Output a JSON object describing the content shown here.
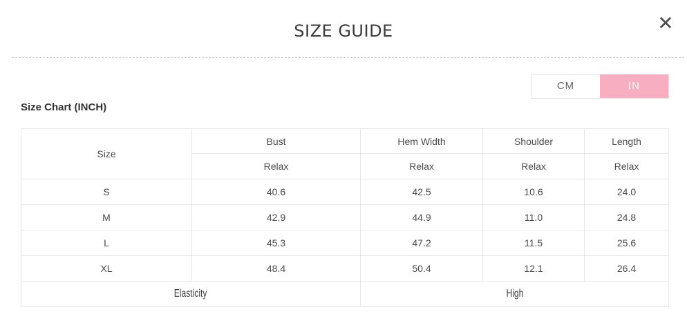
{
  "modal": {
    "title": "SIZE GUIDE",
    "close_icon": "✕"
  },
  "colors": {
    "accent_pink": "#f7aec1",
    "table_border": "#e8e8e8",
    "text_dark": "#3b3b3b"
  },
  "unit_toggle": {
    "options": [
      {
        "label": "CM",
        "selected": false
      },
      {
        "label": "IN",
        "selected": true
      }
    ]
  },
  "section": {
    "heading": "Size Chart (INCH)"
  },
  "table": {
    "columns": [
      "Size",
      "Bust",
      "Hem Width",
      "Shoulder",
      "Length"
    ],
    "fit_row": [
      "Relax",
      "Relax",
      "Relax",
      "Relax"
    ],
    "rows": [
      {
        "size": "S",
        "values": [
          "40.6",
          "42.5",
          "10.6",
          "24.0"
        ]
      },
      {
        "size": "M",
        "values": [
          "42.9",
          "44.9",
          "11.0",
          "24.8"
        ]
      },
      {
        "size": "L",
        "values": [
          "45.3",
          "47.2",
          "11.5",
          "25.6"
        ]
      },
      {
        "size": "XL",
        "values": [
          "48.4",
          "50.4",
          "12.1",
          "26.4"
        ]
      }
    ],
    "footer": {
      "label": "Elasticity",
      "value": "High"
    }
  }
}
